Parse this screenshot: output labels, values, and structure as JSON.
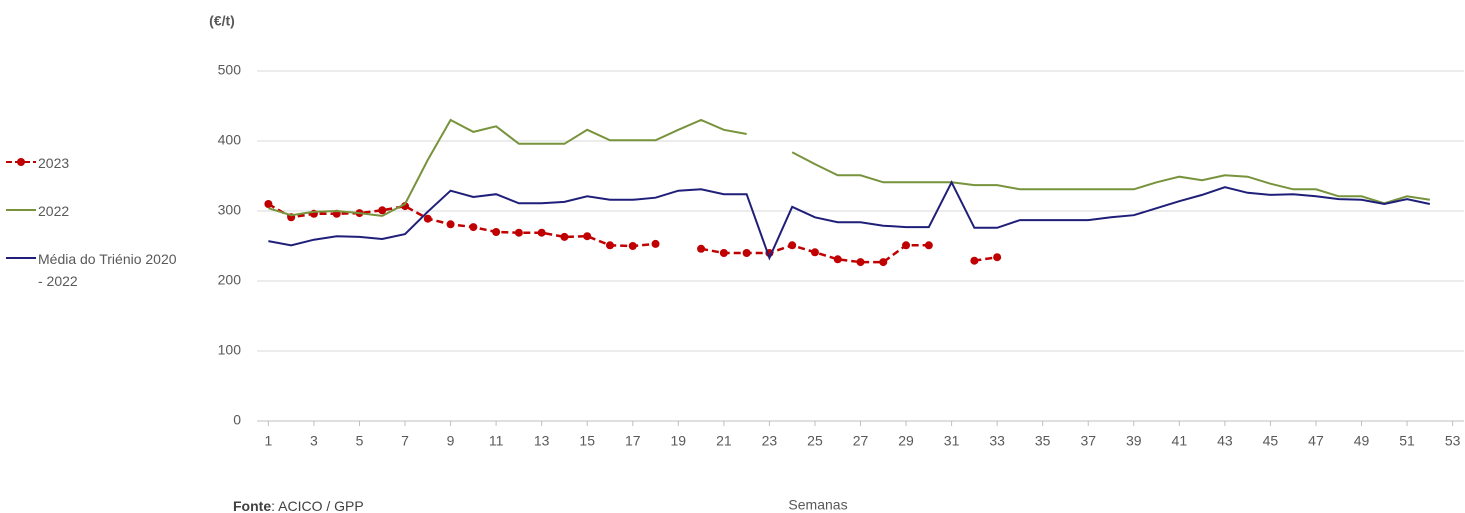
{
  "chart_data": {
    "type": "line",
    "y_label": "(€/t)",
    "x_label": "Semanas",
    "source_label": "Fonte",
    "source_text": ": ACICO / GPP",
    "x": [
      1,
      2,
      3,
      4,
      5,
      6,
      7,
      8,
      9,
      10,
      11,
      12,
      13,
      14,
      15,
      16,
      17,
      18,
      19,
      20,
      21,
      22,
      23,
      24,
      25,
      26,
      27,
      28,
      29,
      30,
      31,
      32,
      33,
      34,
      35,
      36,
      37,
      38,
      39,
      40,
      41,
      42,
      43,
      44,
      45,
      46,
      47,
      48,
      49,
      50,
      51,
      52
    ],
    "xlim": [
      0.5,
      53.5
    ],
    "xticks": [
      1,
      3,
      5,
      7,
      9,
      11,
      13,
      15,
      17,
      19,
      21,
      23,
      25,
      27,
      29,
      31,
      33,
      35,
      37,
      39,
      41,
      43,
      45,
      47,
      49,
      51,
      53
    ],
    "ylim": [
      0,
      500
    ],
    "yticks": [
      0,
      100,
      200,
      300,
      400,
      500
    ],
    "grid": true,
    "legend": "left",
    "series": [
      {
        "name": "2023",
        "color": "#c00000",
        "markers": true,
        "values": [
          310,
          291,
          296,
          296,
          297,
          301,
          307,
          289,
          281,
          277,
          270,
          269,
          269,
          263,
          264,
          251,
          250,
          253,
          null,
          246,
          240,
          240,
          240,
          251,
          241,
          231,
          227,
          227,
          251,
          251,
          null,
          229,
          234,
          null,
          null,
          null,
          null,
          null,
          null,
          null,
          null,
          null,
          null,
          null,
          null,
          null,
          null,
          null,
          null,
          null,
          null,
          null
        ]
      },
      {
        "name": "2022",
        "color": "#77933c",
        "markers": false,
        "values": [
          304,
          294,
          299,
          300,
          297,
          293,
          310,
          373,
          430,
          413,
          421,
          396,
          396,
          396,
          416,
          401,
          401,
          401,
          416,
          430,
          416,
          410,
          null,
          384,
          367,
          351,
          351,
          341,
          341,
          341,
          341,
          337,
          337,
          331,
          331,
          331,
          331,
          331,
          331,
          341,
          349,
          344,
          351,
          349,
          339,
          331,
          331,
          321,
          321,
          311,
          321,
          316
        ]
      },
      {
        "name": "Média do Triénio 2020 - 2022",
        "color": "#1f1f7a",
        "markers": false,
        "values": [
          257,
          251,
          259,
          264,
          263,
          260,
          267,
          299,
          329,
          320,
          324,
          311,
          311,
          313,
          321,
          316,
          316,
          319,
          329,
          331,
          324,
          324,
          233,
          306,
          291,
          284,
          284,
          279,
          277,
          277,
          341,
          276,
          276,
          287,
          287,
          287,
          287,
          291,
          294,
          304,
          314,
          323,
          334,
          326,
          323,
          324,
          321,
          317,
          316,
          310,
          317,
          310
        ]
      }
    ]
  }
}
